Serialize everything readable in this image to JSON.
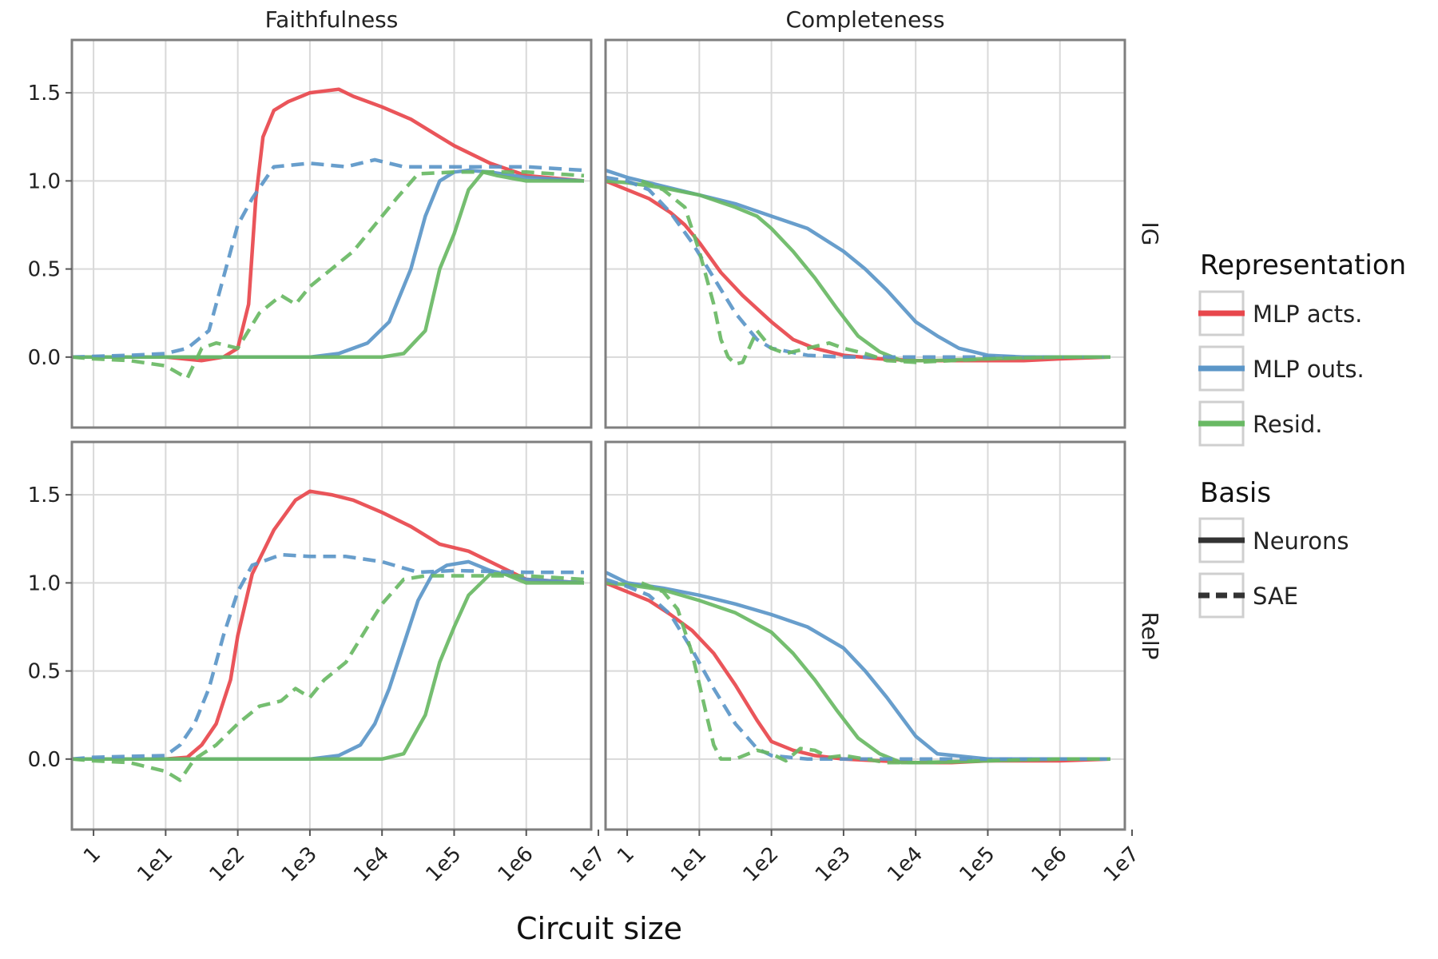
{
  "chart_data": {
    "type": "line",
    "xlabel": "Circuit size",
    "x_scale": "log10",
    "xlim_log10": [
      -0.3,
      6.9
    ],
    "ylim": [
      -0.4,
      1.8
    ],
    "x_tick_values_log10": [
      0,
      1,
      2,
      3,
      4,
      5,
      6,
      7
    ],
    "x_tick_labels": [
      "1",
      "1e1",
      "1e2",
      "1e3",
      "1e4",
      "1e5",
      "1e6",
      "1e7"
    ],
    "y_tick_values": [
      0.0,
      0.5,
      1.0,
      1.5
    ],
    "y_tick_labels": [
      "0.0",
      "0.5",
      "1.0",
      "1.5"
    ],
    "columns": [
      "Faithfulness",
      "Completeness"
    ],
    "rows": [
      "IG",
      "RelP"
    ],
    "legend": {
      "representation_title": "Representation",
      "representation": [
        {
          "label": "MLP acts.",
          "color": "#e8474c"
        },
        {
          "label": "MLP outs.",
          "color": "#5b96c8"
        },
        {
          "label": "Resid.",
          "color": "#69b964"
        }
      ],
      "basis_title": "Basis",
      "basis": [
        {
          "label": "Neurons",
          "dash": "solid"
        },
        {
          "label": "SAE",
          "dash": "dashed"
        }
      ]
    },
    "panels": [
      {
        "row": "IG",
        "column": "Faithfulness",
        "series": [
          {
            "representation": "MLP acts.",
            "basis": "Neurons",
            "x_log10": [
              -0.3,
              0,
              1,
              1.5,
              1.8,
              2,
              2.15,
              2.25,
              2.35,
              2.5,
              2.7,
              3,
              3.4,
              3.6,
              4,
              4.4,
              4.8,
              5,
              5.5,
              6,
              6.8
            ],
            "y": [
              0,
              0,
              0,
              -0.02,
              0,
              0.05,
              0.3,
              0.9,
              1.25,
              1.4,
              1.45,
              1.5,
              1.52,
              1.48,
              1.42,
              1.35,
              1.25,
              1.2,
              1.1,
              1.03,
              1.0
            ]
          },
          {
            "representation": "MLP outs.",
            "basis": "Neurons",
            "x_log10": [
              -0.3,
              0,
              1,
              2,
              3,
              3.4,
              3.8,
              4.1,
              4.4,
              4.6,
              4.8,
              5,
              5.2,
              5.5,
              6,
              6.8
            ],
            "y": [
              0,
              0,
              0,
              0,
              0,
              0.02,
              0.08,
              0.2,
              0.5,
              0.8,
              1.0,
              1.05,
              1.06,
              1.05,
              1.02,
              1.0
            ]
          },
          {
            "representation": "Resid.",
            "basis": "Neurons",
            "x_log10": [
              -0.3,
              0,
              1,
              2,
              3,
              4,
              4.3,
              4.6,
              4.8,
              5,
              5.2,
              5.4,
              5.6,
              6,
              6.8
            ],
            "y": [
              0,
              0,
              0,
              0,
              0,
              0,
              0.02,
              0.15,
              0.5,
              0.7,
              0.95,
              1.05,
              1.03,
              1.0,
              1.0
            ]
          },
          {
            "representation": "MLP outs.",
            "basis": "SAE",
            "x_log10": [
              -0.3,
              0.5,
              1,
              1.3,
              1.6,
              1.8,
              2,
              2.2,
              2.5,
              3,
              3.5,
              3.9,
              4.3,
              5,
              6,
              6.8
            ],
            "y": [
              0,
              0.01,
              0.02,
              0.05,
              0.15,
              0.45,
              0.75,
              0.9,
              1.08,
              1.1,
              1.08,
              1.12,
              1.08,
              1.08,
              1.08,
              1.06
            ]
          },
          {
            "representation": "Resid.",
            "basis": "SAE",
            "x_log10": [
              -0.3,
              0,
              0.5,
              1,
              1.3,
              1.5,
              1.7,
              2,
              2.3,
              2.6,
              2.8,
              3,
              3.3,
              3.6,
              3.9,
              4.2,
              4.5,
              5,
              6,
              6.8
            ],
            "y": [
              0,
              -0.01,
              -0.02,
              -0.05,
              -0.12,
              0.05,
              0.08,
              0.05,
              0.25,
              0.35,
              0.3,
              0.4,
              0.5,
              0.6,
              0.75,
              0.9,
              1.04,
              1.05,
              1.05,
              1.03
            ]
          }
        ]
      },
      {
        "row": "IG",
        "column": "Completeness",
        "series": [
          {
            "representation": "MLP acts.",
            "basis": "Neurons",
            "x_log10": [
              -0.3,
              0,
              0.3,
              0.6,
              0.8,
              1,
              1.3,
              1.6,
              2,
              2.3,
              2.6,
              3,
              3.5,
              4,
              4.5,
              5,
              5.5,
              6,
              6.7
            ],
            "y": [
              1,
              0.95,
              0.9,
              0.82,
              0.75,
              0.65,
              0.48,
              0.35,
              0.2,
              0.1,
              0.05,
              0.01,
              -0.01,
              -0.02,
              -0.02,
              -0.02,
              -0.02,
              -0.01,
              0
            ]
          },
          {
            "representation": "MLP outs.",
            "basis": "Neurons",
            "x_log10": [
              -0.3,
              0,
              0.5,
              1,
              1.5,
              2,
              2.5,
              3,
              3.3,
              3.6,
              4,
              4.3,
              4.6,
              5,
              5.5,
              6,
              6.7
            ],
            "y": [
              1.06,
              1.02,
              0.97,
              0.92,
              0.87,
              0.8,
              0.73,
              0.6,
              0.5,
              0.38,
              0.2,
              0.12,
              0.05,
              0.01,
              0,
              0,
              0
            ]
          },
          {
            "representation": "Resid.",
            "basis": "Neurons",
            "x_log10": [
              -0.3,
              0,
              0.5,
              1,
              1.5,
              1.8,
              2,
              2.3,
              2.6,
              2.9,
              3.2,
              3.5,
              3.8,
              4.2,
              5,
              6,
              6.7
            ],
            "y": [
              1,
              0.99,
              0.96,
              0.92,
              0.85,
              0.8,
              0.73,
              0.6,
              0.45,
              0.28,
              0.12,
              0.03,
              -0.02,
              -0.02,
              -0.01,
              0,
              0
            ]
          },
          {
            "representation": "MLP outs.",
            "basis": "SAE",
            "x_log10": [
              -0.3,
              0,
              0.3,
              0.6,
              0.9,
              1.2,
              1.5,
              1.8,
              2,
              2.5,
              3,
              3.5,
              4,
              5,
              6,
              6.7
            ],
            "y": [
              1.02,
              1.0,
              0.95,
              0.82,
              0.65,
              0.45,
              0.25,
              0.1,
              0.05,
              0.01,
              0,
              0,
              0,
              0,
              0,
              0
            ]
          },
          {
            "representation": "Resid.",
            "basis": "SAE",
            "x_log10": [
              0.2,
              0.5,
              0.8,
              1,
              1.2,
              1.3,
              1.4,
              1.5,
              1.6,
              1.8,
              2,
              2.2,
              2.5,
              2.8,
              3,
              3.3,
              3.6,
              4,
              5,
              6,
              6.7
            ],
            "y": [
              1,
              0.95,
              0.85,
              0.6,
              0.3,
              0.1,
              0.0,
              -0.04,
              -0.03,
              0.15,
              0.05,
              0.02,
              0.05,
              0.08,
              0.05,
              0.02,
              -0.02,
              -0.03,
              -0.01,
              0,
              0
            ]
          }
        ]
      },
      {
        "row": "RelP",
        "column": "Faithfulness",
        "series": [
          {
            "representation": "MLP acts.",
            "basis": "Neurons",
            "x_log10": [
              -0.3,
              0,
              1,
              1.3,
              1.5,
              1.7,
              1.9,
              2,
              2.2,
              2.5,
              2.8,
              3,
              3.3,
              3.6,
              4,
              4.4,
              4.8,
              5,
              5.2,
              5.5,
              6,
              6.8
            ],
            "y": [
              0,
              0,
              0,
              0.01,
              0.08,
              0.2,
              0.45,
              0.7,
              1.05,
              1.3,
              1.47,
              1.52,
              1.5,
              1.47,
              1.4,
              1.32,
              1.22,
              1.2,
              1.18,
              1.12,
              1.02,
              1.0
            ]
          },
          {
            "representation": "MLP outs.",
            "basis": "Neurons",
            "x_log10": [
              -0.3,
              0,
              1,
              2,
              3,
              3.4,
              3.7,
              3.9,
              4.1,
              4.3,
              4.5,
              4.7,
              4.9,
              5.2,
              5.5,
              6,
              6.8
            ],
            "y": [
              0,
              0,
              0,
              0,
              0,
              0.02,
              0.08,
              0.2,
              0.4,
              0.65,
              0.9,
              1.05,
              1.1,
              1.12,
              1.07,
              1.02,
              1.0
            ]
          },
          {
            "representation": "Resid.",
            "basis": "Neurons",
            "x_log10": [
              -0.3,
              0,
              1,
              2,
              3,
              4,
              4.3,
              4.6,
              4.8,
              5,
              5.2,
              5.5,
              5.7,
              6,
              6.8
            ],
            "y": [
              0,
              0,
              0,
              0,
              0,
              0,
              0.03,
              0.25,
              0.55,
              0.75,
              0.93,
              1.05,
              1.05,
              1.0,
              1.0
            ]
          },
          {
            "representation": "MLP outs.",
            "basis": "SAE",
            "x_log10": [
              -0.3,
              0,
              1,
              1.2,
              1.4,
              1.6,
              1.8,
              2,
              2.2,
              2.6,
              3,
              3.5,
              4,
              4.5,
              5,
              6,
              6.8
            ],
            "y": [
              0,
              0.01,
              0.02,
              0.08,
              0.2,
              0.4,
              0.7,
              0.95,
              1.1,
              1.16,
              1.15,
              1.15,
              1.12,
              1.06,
              1.07,
              1.06,
              1.06
            ]
          },
          {
            "representation": "Resid.",
            "basis": "SAE",
            "x_log10": [
              -0.3,
              0,
              0.5,
              1,
              1.2,
              1.4,
              1.7,
              2,
              2.3,
              2.6,
              2.8,
              3,
              3.2,
              3.5,
              3.8,
              4,
              4.3,
              4.6,
              5,
              6,
              6.8
            ],
            "y": [
              0,
              -0.01,
              -0.02,
              -0.07,
              -0.12,
              0.0,
              0.08,
              0.2,
              0.3,
              0.33,
              0.4,
              0.35,
              0.45,
              0.55,
              0.75,
              0.88,
              1.02,
              1.04,
              1.04,
              1.04,
              1.02
            ]
          }
        ]
      },
      {
        "row": "RelP",
        "column": "Completeness",
        "series": [
          {
            "representation": "MLP acts.",
            "basis": "Neurons",
            "x_log10": [
              -0.3,
              0,
              0.3,
              0.6,
              0.9,
              1.2,
              1.5,
              1.8,
              2,
              2.3,
              2.6,
              3,
              3.5,
              4,
              4.5,
              5,
              5.5,
              6,
              6.7
            ],
            "y": [
              1,
              0.95,
              0.9,
              0.82,
              0.73,
              0.6,
              0.42,
              0.22,
              0.1,
              0.05,
              0.02,
              0,
              -0.01,
              -0.02,
              -0.02,
              -0.01,
              -0.01,
              -0.01,
              0
            ]
          },
          {
            "representation": "MLP outs.",
            "basis": "Neurons",
            "x_log10": [
              -0.3,
              0,
              0.5,
              1,
              1.5,
              2,
              2.5,
              3,
              3.3,
              3.6,
              4,
              4.3,
              5,
              6,
              6.7
            ],
            "y": [
              1.06,
              1.0,
              0.97,
              0.93,
              0.88,
              0.82,
              0.75,
              0.63,
              0.5,
              0.35,
              0.13,
              0.03,
              0,
              0,
              0
            ]
          },
          {
            "representation": "Resid.",
            "basis": "Neurons",
            "x_log10": [
              -0.3,
              0,
              0.5,
              1,
              1.5,
              2,
              2.3,
              2.6,
              2.9,
              3.2,
              3.5,
              3.8,
              4.2,
              5,
              6,
              6.7
            ],
            "y": [
              1,
              0.99,
              0.96,
              0.9,
              0.83,
              0.72,
              0.6,
              0.45,
              0.28,
              0.12,
              0.03,
              -0.02,
              -0.02,
              -0.01,
              0,
              0
            ]
          },
          {
            "representation": "MLP outs.",
            "basis": "SAE",
            "x_log10": [
              -0.3,
              0,
              0.3,
              0.6,
              0.9,
              1.2,
              1.5,
              1.8,
              2,
              2.5,
              3,
              4,
              5,
              6,
              6.7
            ],
            "y": [
              1.02,
              0.98,
              0.93,
              0.82,
              0.62,
              0.4,
              0.2,
              0.06,
              0.02,
              0,
              0,
              0,
              0,
              0,
              0
            ]
          },
          {
            "representation": "Resid.",
            "basis": "SAE",
            "x_log10": [
              0.2,
              0.5,
              0.7,
              0.9,
              1.1,
              1.2,
              1.3,
              1.5,
              1.8,
              2,
              2.2,
              2.4,
              2.6,
              2.8,
              3,
              3.3,
              3.6,
              4,
              5,
              6,
              6.7
            ],
            "y": [
              1,
              0.95,
              0.85,
              0.6,
              0.25,
              0.08,
              0.0,
              0.0,
              0.05,
              0.03,
              -0.01,
              0.06,
              0.05,
              0.01,
              0.02,
              0.0,
              -0.02,
              -0.02,
              -0.01,
              0,
              0
            ]
          }
        ]
      }
    ]
  }
}
